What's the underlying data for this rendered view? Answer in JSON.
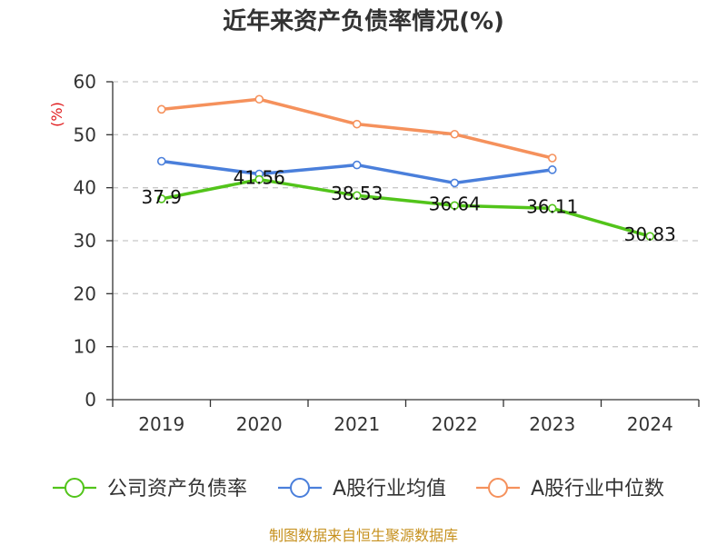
{
  "chart_data": {
    "type": "line",
    "title": "近年来资产负债率情况(%)",
    "ylabel": "(%)",
    "xlabel": "",
    "categories": [
      "2019",
      "2020",
      "2021",
      "2022",
      "2023",
      "2024"
    ],
    "ylim": [
      0,
      60
    ],
    "yticks": [
      0,
      10,
      20,
      30,
      40,
      50,
      60
    ],
    "grid": true,
    "legend_position": "bottom",
    "series": [
      {
        "name": "公司资产负债率",
        "color": "#52c41a",
        "values": [
          37.9,
          41.56,
          38.53,
          36.64,
          36.11,
          30.83
        ],
        "labels": [
          "37.9",
          "41.56",
          "38.53",
          "36.64",
          "36.11",
          "30.83"
        ]
      },
      {
        "name": "A股行业均值",
        "color": "#4a7fdb",
        "values": [
          45.0,
          42.6,
          44.3,
          40.9,
          43.4,
          null
        ]
      },
      {
        "name": "A股行业中位数",
        "color": "#f5915c",
        "values": [
          54.8,
          56.7,
          52.0,
          50.1,
          45.6,
          null
        ]
      }
    ]
  },
  "footer": {
    "source": "制图数据来自恒生聚源数据库"
  }
}
